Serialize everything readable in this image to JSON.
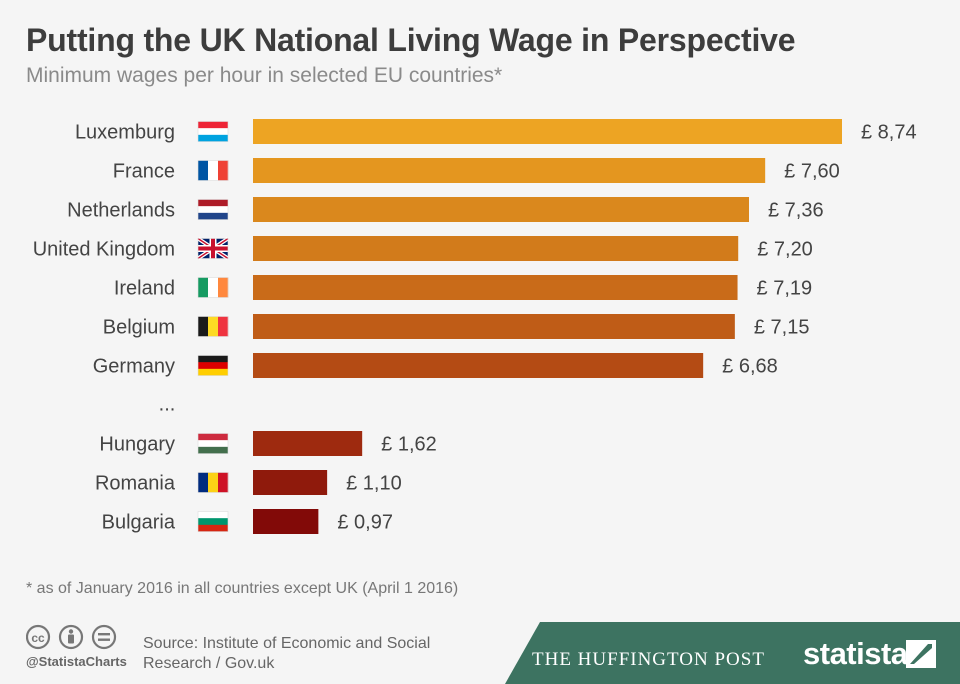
{
  "title": "Putting the UK National Living Wage in Perspective",
  "subtitle": "Minimum wages per hour in selected EU countries*",
  "chart_data": {
    "type": "bar",
    "orientation": "horizontal",
    "value_prefix": "£ ",
    "decimal_separator": ",",
    "gap_marker": "...",
    "rows": [
      {
        "country": "Luxemburg",
        "flag": "luxembourg-flag",
        "value": 8.74,
        "label": "£ 8,74",
        "color": "#eda423"
      },
      {
        "country": "France",
        "flag": "france-flag",
        "value": 7.6,
        "label": "£ 7,60",
        "color": "#e4961f"
      },
      {
        "country": "Netherlands",
        "flag": "netherlands-flag",
        "value": 7.36,
        "label": "£ 7,36",
        "color": "#da881d"
      },
      {
        "country": "United Kingdom",
        "flag": "uk-flag",
        "value": 7.2,
        "label": "£ 7,20",
        "color": "#d27b1b"
      },
      {
        "country": "Ireland",
        "flag": "ireland-flag",
        "value": 7.19,
        "label": "£ 7,19",
        "color": "#c96b19"
      },
      {
        "country": "Belgium",
        "flag": "belgium-flag",
        "value": 7.15,
        "label": "£ 7,15",
        "color": "#bf5c17"
      },
      {
        "country": "Germany",
        "flag": "germany-flag",
        "value": 6.68,
        "label": "£ 6,68",
        "color": "#b44b14"
      },
      {
        "gap": true,
        "label": "..."
      },
      {
        "country": "Hungary",
        "flag": "hungary-flag",
        "value": 1.62,
        "label": "£ 1,62",
        "color": "#9e2a0f"
      },
      {
        "country": "Romania",
        "flag": "romania-flag",
        "value": 1.1,
        "label": "£ 1,10",
        "color": "#8f1a0c"
      },
      {
        "country": "Bulgaria",
        "flag": "bulgaria-flag",
        "value": 0.97,
        "label": "£ 0,97",
        "color": "#820a08"
      }
    ],
    "grid": false,
    "legend": "none"
  },
  "footnote": "* as of January 2016 in all countries except UK (April 1 2016)",
  "footer": {
    "cc_handle": "@StatistaCharts",
    "source": "Source: Institute of Economic and Social Research / Gov.uk",
    "partner": "THE HUFFINGTON POST",
    "brand": "statista",
    "band_color": "#3d7361"
  }
}
